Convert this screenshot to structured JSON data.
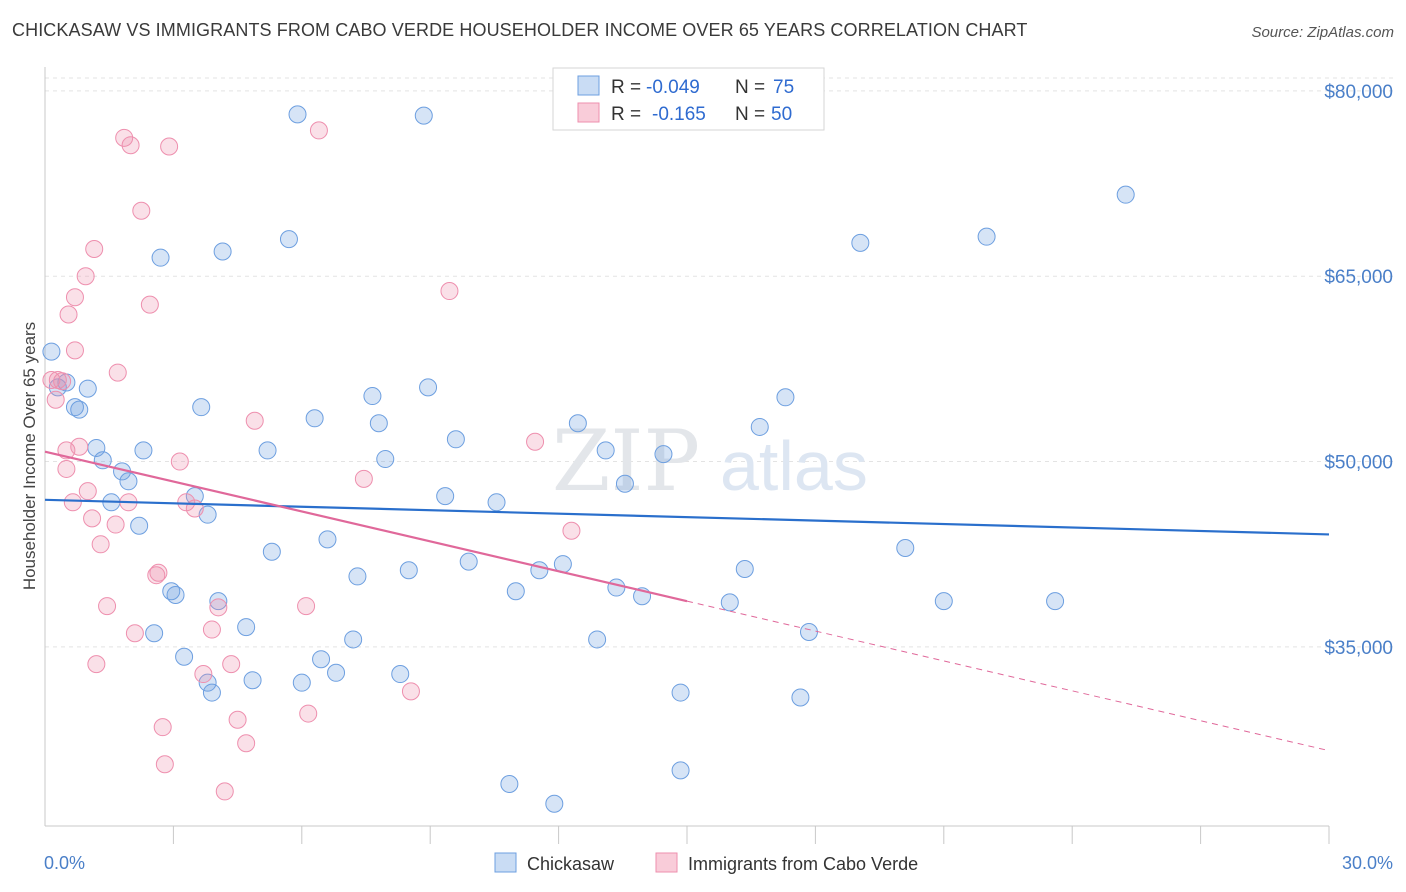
{
  "title": "CHICKASAW VS IMMIGRANTS FROM CABO VERDE HOUSEHOLDER INCOME OVER 65 YEARS CORRELATION CHART",
  "source": "Source: ZipAtlas.com",
  "watermark": {
    "zip": "ZIP",
    "atlas": "atlas"
  },
  "legend": {
    "rows": [
      {
        "r_label": "R =",
        "r_value": "-0.049",
        "n_label": "N =",
        "n_value": "75"
      },
      {
        "r_label": "R =",
        "r_value": "-0.165",
        "n_label": "N =",
        "n_value": "50"
      }
    ]
  },
  "bottom_legend": [
    "Chickasaw",
    "Immigrants from Cabo Verde"
  ],
  "chart_data": {
    "type": "scatter",
    "xlabel": "",
    "ylabel": "Householder Income Over 65 years",
    "x_tick_labels": [
      "0.0%",
      "30.0%"
    ],
    "y_tick_labels": [
      "$80,000",
      "$65,000",
      "$50,000",
      "$35,000"
    ],
    "y_ticks": [
      80000,
      65000,
      50000,
      35000
    ],
    "xlim": [
      0,
      30
    ],
    "ylim": [
      20500,
      82500
    ],
    "grid": true,
    "colors": {
      "chickasaw": "#6d9fe0",
      "cabo_verde": "#ee8fae",
      "chickasaw_line": "#2a6fcc",
      "cabo_verde_line": "#e0689a"
    },
    "series": [
      {
        "name": "Chickasaw",
        "trend": {
          "x0": 0,
          "y0": 46900,
          "x1": 30,
          "y1": 44100
        },
        "points": [
          [
            0.15,
            58900
          ],
          [
            0.3,
            56000
          ],
          [
            0.5,
            56400
          ],
          [
            0.7,
            54400
          ],
          [
            0.8,
            54200
          ],
          [
            1.0,
            55900
          ],
          [
            1.2,
            51100
          ],
          [
            1.35,
            50100
          ],
          [
            1.55,
            46700
          ],
          [
            1.8,
            49200
          ],
          [
            1.95,
            48400
          ],
          [
            2.2,
            44800
          ],
          [
            2.3,
            50900
          ],
          [
            2.55,
            36100
          ],
          [
            2.7,
            66500
          ],
          [
            2.95,
            39500
          ],
          [
            3.05,
            39200
          ],
          [
            3.25,
            34200
          ],
          [
            3.5,
            47200
          ],
          [
            3.65,
            54400
          ],
          [
            3.8,
            45700
          ],
          [
            3.8,
            32100
          ],
          [
            3.9,
            31300
          ],
          [
            4.05,
            38700
          ],
          [
            4.15,
            67000
          ],
          [
            4.7,
            36600
          ],
          [
            4.85,
            32300
          ],
          [
            5.2,
            50900
          ],
          [
            5.3,
            42700
          ],
          [
            5.7,
            68000
          ],
          [
            5.9,
            78100
          ],
          [
            6.0,
            32100
          ],
          [
            6.3,
            53500
          ],
          [
            6.45,
            34000
          ],
          [
            6.6,
            43700
          ],
          [
            6.8,
            32900
          ],
          [
            7.2,
            35600
          ],
          [
            7.3,
            40700
          ],
          [
            7.65,
            55300
          ],
          [
            7.8,
            53100
          ],
          [
            7.95,
            50200
          ],
          [
            8.3,
            32800
          ],
          [
            8.5,
            41200
          ],
          [
            8.85,
            78000
          ],
          [
            8.95,
            56000
          ],
          [
            9.35,
            47200
          ],
          [
            9.6,
            51800
          ],
          [
            9.9,
            41900
          ],
          [
            10.55,
            46700
          ],
          [
            10.85,
            23900
          ],
          [
            11.0,
            39500
          ],
          [
            11.55,
            41200
          ],
          [
            11.9,
            22300
          ],
          [
            12.1,
            41700
          ],
          [
            12.45,
            53100
          ],
          [
            12.9,
            35600
          ],
          [
            13.1,
            50900
          ],
          [
            13.35,
            39800
          ],
          [
            13.55,
            48200
          ],
          [
            13.95,
            39100
          ],
          [
            14.45,
            50600
          ],
          [
            14.85,
            31300
          ],
          [
            14.85,
            25000
          ],
          [
            16.0,
            38600
          ],
          [
            16.35,
            41300
          ],
          [
            16.7,
            52800
          ],
          [
            17.3,
            55200
          ],
          [
            17.65,
            30900
          ],
          [
            17.85,
            36200
          ],
          [
            19.05,
            67700
          ],
          [
            20.1,
            43000
          ],
          [
            21.0,
            38700
          ],
          [
            22.0,
            68200
          ],
          [
            23.6,
            38700
          ],
          [
            25.25,
            71600
          ]
        ]
      },
      {
        "name": "Immigrants from Cabo Verde",
        "trend": {
          "x0": 0,
          "y0": 50800,
          "x1": 15,
          "y1": 38700,
          "x_dash_end": 30,
          "y_dash_end": 26600
        },
        "points": [
          [
            0.15,
            56600
          ],
          [
            0.25,
            55000
          ],
          [
            0.3,
            56600
          ],
          [
            0.4,
            56500
          ],
          [
            0.5,
            50900
          ],
          [
            0.5,
            49400
          ],
          [
            0.55,
            61900
          ],
          [
            0.65,
            46700
          ],
          [
            0.7,
            63300
          ],
          [
            0.7,
            59000
          ],
          [
            0.8,
            51200
          ],
          [
            0.95,
            65000
          ],
          [
            1.0,
            47600
          ],
          [
            1.1,
            45400
          ],
          [
            1.15,
            67200
          ],
          [
            1.2,
            33600
          ],
          [
            1.3,
            43300
          ],
          [
            1.45,
            38300
          ],
          [
            1.65,
            44900
          ],
          [
            1.7,
            57200
          ],
          [
            1.85,
            76200
          ],
          [
            1.95,
            46700
          ],
          [
            2.0,
            75600
          ],
          [
            2.1,
            36100
          ],
          [
            2.25,
            70300
          ],
          [
            2.45,
            62700
          ],
          [
            2.6,
            40800
          ],
          [
            2.65,
            41000
          ],
          [
            2.75,
            28500
          ],
          [
            2.8,
            25500
          ],
          [
            2.9,
            75500
          ],
          [
            3.15,
            50000
          ],
          [
            3.3,
            46700
          ],
          [
            3.5,
            46200
          ],
          [
            3.7,
            32800
          ],
          [
            3.9,
            36400
          ],
          [
            4.05,
            38200
          ],
          [
            4.2,
            23300
          ],
          [
            4.35,
            33600
          ],
          [
            4.5,
            29100
          ],
          [
            4.7,
            27200
          ],
          [
            4.9,
            53300
          ],
          [
            6.1,
            38300
          ],
          [
            6.15,
            29600
          ],
          [
            6.4,
            76800
          ],
          [
            7.45,
            48600
          ],
          [
            8.55,
            31400
          ],
          [
            9.45,
            63800
          ],
          [
            11.45,
            51600
          ],
          [
            12.3,
            44400
          ]
        ]
      }
    ]
  }
}
